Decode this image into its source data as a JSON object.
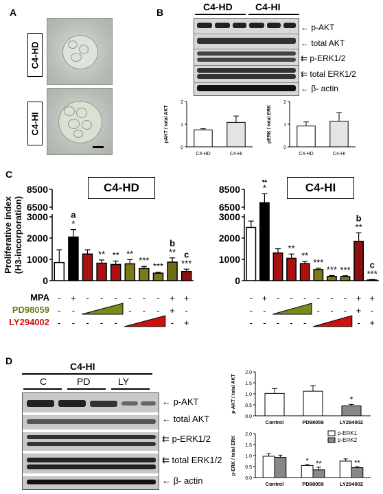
{
  "panels": {
    "A": {
      "letter": "A",
      "label_top": "C4-HD",
      "label_bottom": "C4-HI"
    },
    "B": {
      "letter": "B",
      "group_labels": [
        "C4-HD",
        "C4-HI"
      ],
      "blot_labels": [
        "p-AKT",
        "total AKT",
        "p-ERK1/2",
        "total ERK1/2",
        "β- actin"
      ]
    },
    "C": {
      "letter": "C",
      "title_left": "C4-HD",
      "title_right": "C4-HI",
      "ylabel_line1": "Proliferative index",
      "ylabel_line2": "(H3-incorporation)",
      "treat_labels": [
        "MPA",
        "PD98059",
        "LY294002"
      ],
      "treat_colors": {
        "MPA": "#000000",
        "PD98059": "#6b7a1a",
        "LY294002": "#cc1111"
      },
      "left_mpa": [
        "-",
        "+",
        "-",
        "-",
        "-",
        "-",
        "-",
        "-",
        "+",
        "+"
      ],
      "left_pd": [
        "-",
        "-",
        "",
        "",
        "",
        "-",
        "-",
        "-",
        "+",
        "-"
      ],
      "left_ly": [
        "-",
        "-",
        "-",
        "-",
        "-",
        "",
        "",
        "",
        "-",
        "+"
      ],
      "right_mpa": [
        "-",
        "+",
        "-",
        "-",
        "-",
        "-",
        "-",
        "-",
        "+",
        "+"
      ],
      "right_pd": [
        "-",
        "-",
        "",
        "",
        "",
        "-",
        "-",
        "-",
        "+",
        "-"
      ],
      "right_ly": [
        "-",
        "-",
        "-",
        "-",
        "-",
        "",
        "",
        "",
        "-",
        "+"
      ]
    },
    "D": {
      "letter": "D",
      "title": "C4-HI",
      "group_labels": [
        "C",
        "PD",
        "LY"
      ],
      "blot_labels": [
        "p-AKT",
        "total AKT",
        "p-ERK1/2",
        "total ERK1/2",
        "β- actin"
      ]
    }
  },
  "chart_data": [
    {
      "id": "B-akt",
      "type": "bar",
      "categories": [
        "C4-HD",
        "C4-HI"
      ],
      "values": [
        0.75,
        1.08
      ],
      "errors": [
        0.05,
        0.28
      ],
      "ylabel": "pAKT / total AKT",
      "ylim": [
        0,
        2
      ],
      "yticks": [
        0,
        1,
        2
      ],
      "colors": [
        "#ffffff",
        "#e4e4e4"
      ]
    },
    {
      "id": "B-erk",
      "type": "bar",
      "categories": [
        "C4-HD",
        "C4-HI"
      ],
      "values": [
        0.92,
        1.13
      ],
      "errors": [
        0.18,
        0.38
      ],
      "ylabel": "pERK / total ERK",
      "ylim": [
        0,
        2
      ],
      "yticks": [
        0,
        1,
        2
      ],
      "colors": [
        "#ffffff",
        "#e4e4e4"
      ]
    },
    {
      "id": "C-left",
      "type": "bar",
      "ylim": [
        0,
        8500
      ],
      "yticks_low": [
        "0",
        "1000",
        "2000",
        "3000"
      ],
      "yticks_high": [
        "6500",
        "8500"
      ],
      "values": [
        850,
        2050,
        1250,
        820,
        760,
        790,
        570,
        350,
        870,
        430
      ],
      "errors": [
        600,
        350,
        200,
        150,
        160,
        200,
        100,
        50,
        200,
        110
      ],
      "colors": [
        "#ffffff",
        "#000000",
        "#aa1111",
        "#aa1111",
        "#aa1111",
        "#7a7a18",
        "#7a7a18",
        "#7a7a18",
        "#6e6e18",
        "#8a1111"
      ],
      "annotations": [
        "",
        "a\n*",
        "",
        "**",
        "**",
        "**",
        "***",
        "***",
        "b\n**",
        "c\n***"
      ]
    },
    {
      "id": "C-right",
      "type": "bar",
      "ylim": [
        0,
        8500
      ],
      "yticks_low": [
        "0",
        "1000",
        "2000",
        "3000"
      ],
      "yticks_high": [
        "6500",
        "8500"
      ],
      "values": [
        2500,
        7000,
        1300,
        1050,
        800,
        520,
        200,
        190,
        1850,
        30
      ],
      "errors": [
        300,
        1000,
        200,
        200,
        100,
        60,
        40,
        40,
        400,
        20
      ],
      "colors": [
        "#ffffff",
        "#000000",
        "#aa1111",
        "#aa1111",
        "#aa1111",
        "#7a7a18",
        "#7a7a18",
        "#7a7a18",
        "#8a1111",
        "#ffffff"
      ],
      "annotations": [
        "",
        "a\n*",
        "",
        "**",
        "**",
        "***",
        "***",
        "***",
        "b\n**",
        "c\n***"
      ]
    },
    {
      "id": "D-akt",
      "type": "bar",
      "categories": [
        "Control",
        "PD98059",
        "LY294002"
      ],
      "values": [
        1.02,
        1.12,
        0.45
      ],
      "errors": [
        0.22,
        0.25,
        0.07
      ],
      "ylabel": "p-AKT / total AKT",
      "ylim": [
        0,
        2
      ],
      "yticks": [
        "0.0",
        "0.5",
        "1.0",
        "1.5",
        "2.0"
      ],
      "colors": [
        "#ffffff",
        "#ffffff",
        "#888888"
      ],
      "annotations": [
        "",
        "",
        "*"
      ]
    },
    {
      "id": "D-erk",
      "type": "bar",
      "categories": [
        "Control",
        "PD98059",
        "LY294002"
      ],
      "series": [
        {
          "name": "p-ERK1",
          "values": [
            0.97,
            0.55,
            0.75
          ],
          "errors": [
            0.12,
            0.05,
            0.1
          ],
          "annotations": [
            "",
            "*",
            ""
          ]
        },
        {
          "name": "p-ERK2",
          "values": [
            0.92,
            0.35,
            0.45
          ],
          "errors": [
            0.1,
            0.12,
            0.05
          ],
          "annotations": [
            "",
            "**",
            "**"
          ]
        }
      ],
      "ylabel": "p-ERK / total ERK",
      "ylim": [
        0,
        2
      ],
      "yticks": [
        "0.0",
        "0.5",
        "1.0",
        "1.5",
        "2.0"
      ],
      "colors": [
        "#ffffff",
        "#888888"
      ]
    }
  ]
}
